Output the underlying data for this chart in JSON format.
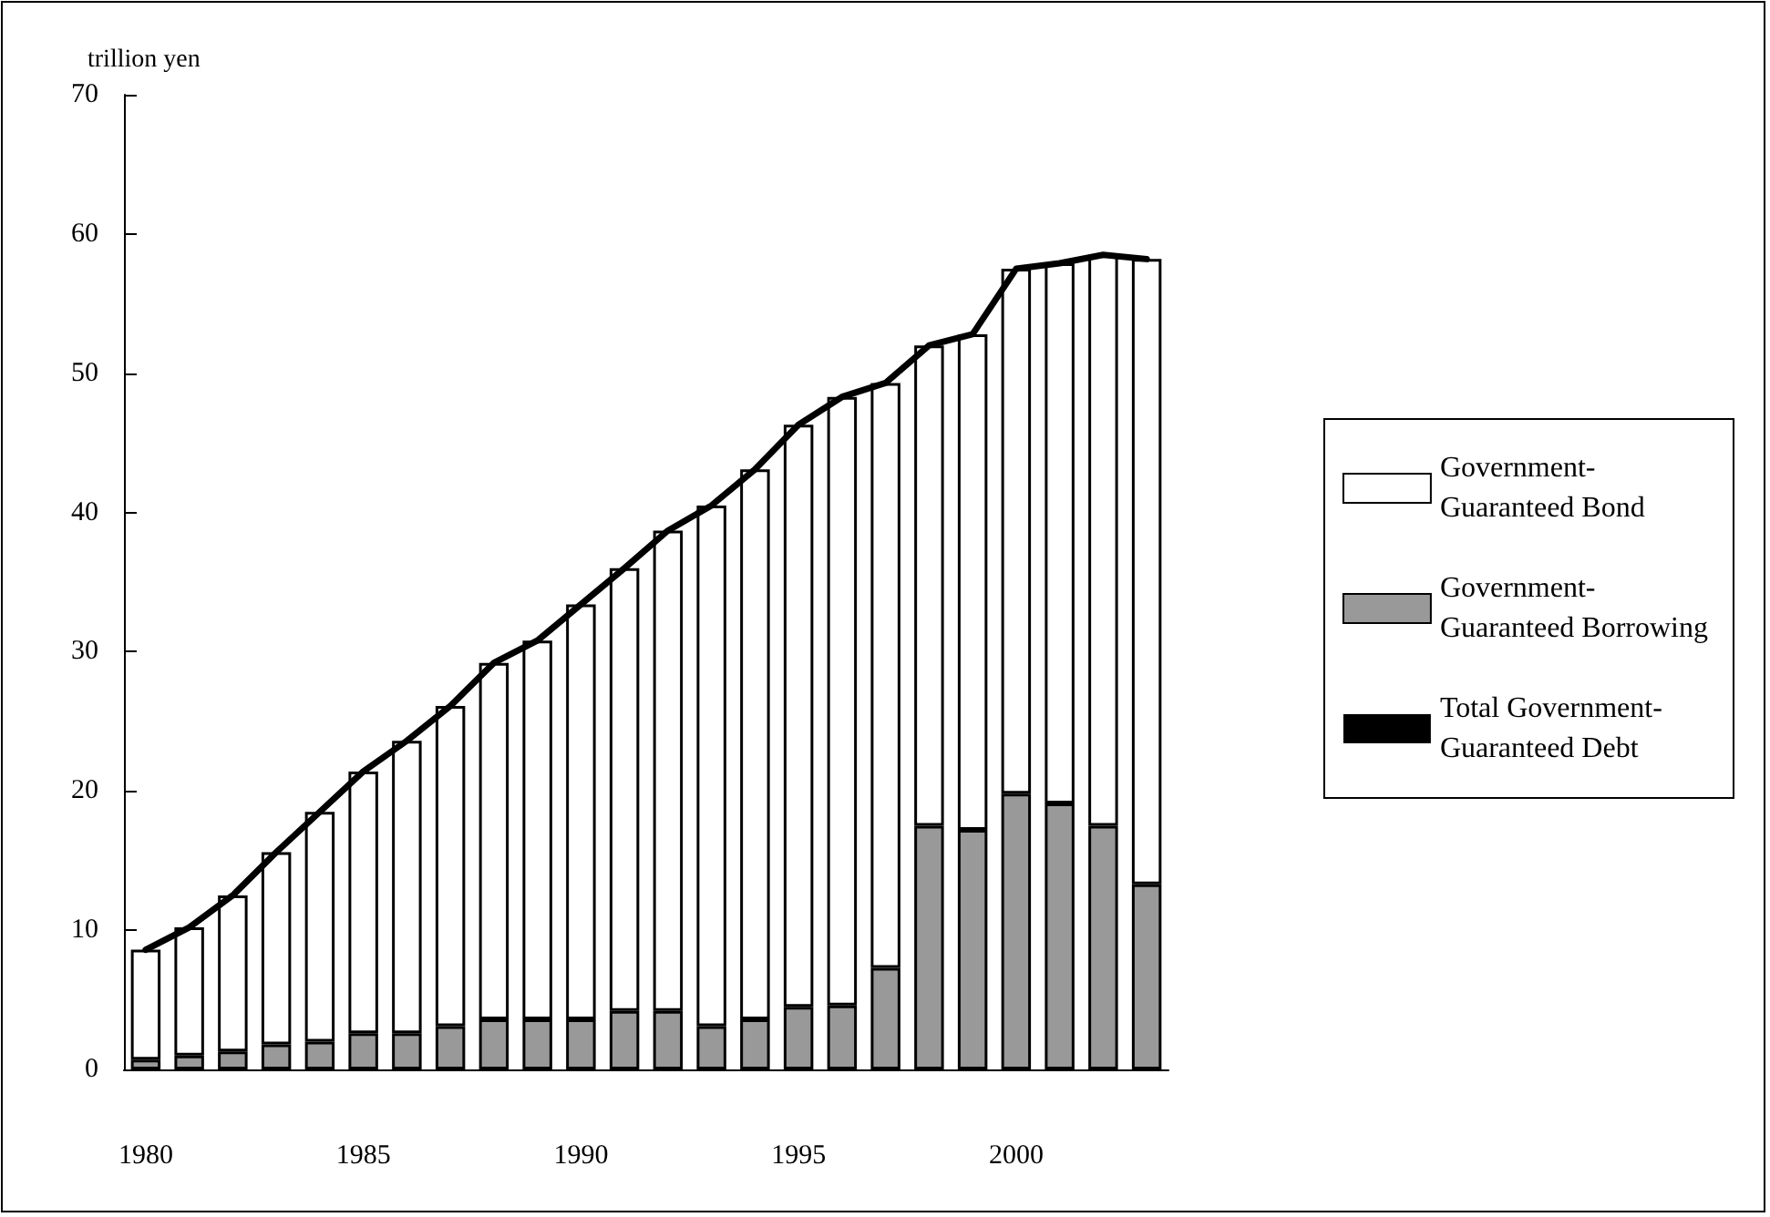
{
  "chart_data": {
    "type": "bar",
    "stacked": true,
    "ylabel": "trillion yen",
    "categories": [
      "1980",
      null,
      null,
      null,
      null,
      "1985",
      null,
      null,
      null,
      null,
      "1990",
      null,
      null,
      null,
      null,
      "1995",
      null,
      null,
      null,
      null,
      "2000",
      null,
      null,
      null
    ],
    "series": [
      {
        "name": "Government-Guaranteed Borrowing",
        "color": "#999999",
        "values": [
          0.7,
          1.0,
          1.3,
          1.8,
          2.0,
          2.6,
          2.6,
          3.1,
          3.6,
          3.6,
          3.6,
          4.2,
          4.2,
          3.1,
          3.6,
          4.5,
          4.6,
          7.3,
          17.5,
          17.2,
          19.8,
          19.1,
          17.5,
          13.3
        ]
      },
      {
        "name": "Government-Guaranteed Bond",
        "color": "#ffffff",
        "values": [
          7.9,
          9.2,
          11.2,
          13.8,
          16.5,
          18.8,
          21.0,
          23.0,
          25.6,
          27.2,
          29.8,
          31.8,
          34.5,
          37.4,
          39.5,
          41.8,
          43.7,
          42.0,
          34.5,
          35.6,
          37.7,
          38.8,
          41.0,
          44.9
        ]
      },
      {
        "name": "Total Government-Guaranteed Debt",
        "type": "line",
        "color": "#000000",
        "values": [
          8.6,
          10.2,
          12.5,
          15.6,
          18.5,
          21.4,
          23.6,
          26.1,
          29.2,
          30.8,
          33.4,
          36.0,
          38.7,
          40.5,
          43.1,
          46.3,
          48.3,
          49.3,
          52.0,
          52.8,
          57.5,
          57.9,
          58.5,
          58.2
        ]
      }
    ],
    "ylim": [
      0,
      70
    ],
    "yticks": [
      0,
      10,
      20,
      30,
      40,
      50,
      60,
      70
    ],
    "grid": false,
    "legend": "right",
    "marker": "none",
    "line_style": "solid"
  }
}
